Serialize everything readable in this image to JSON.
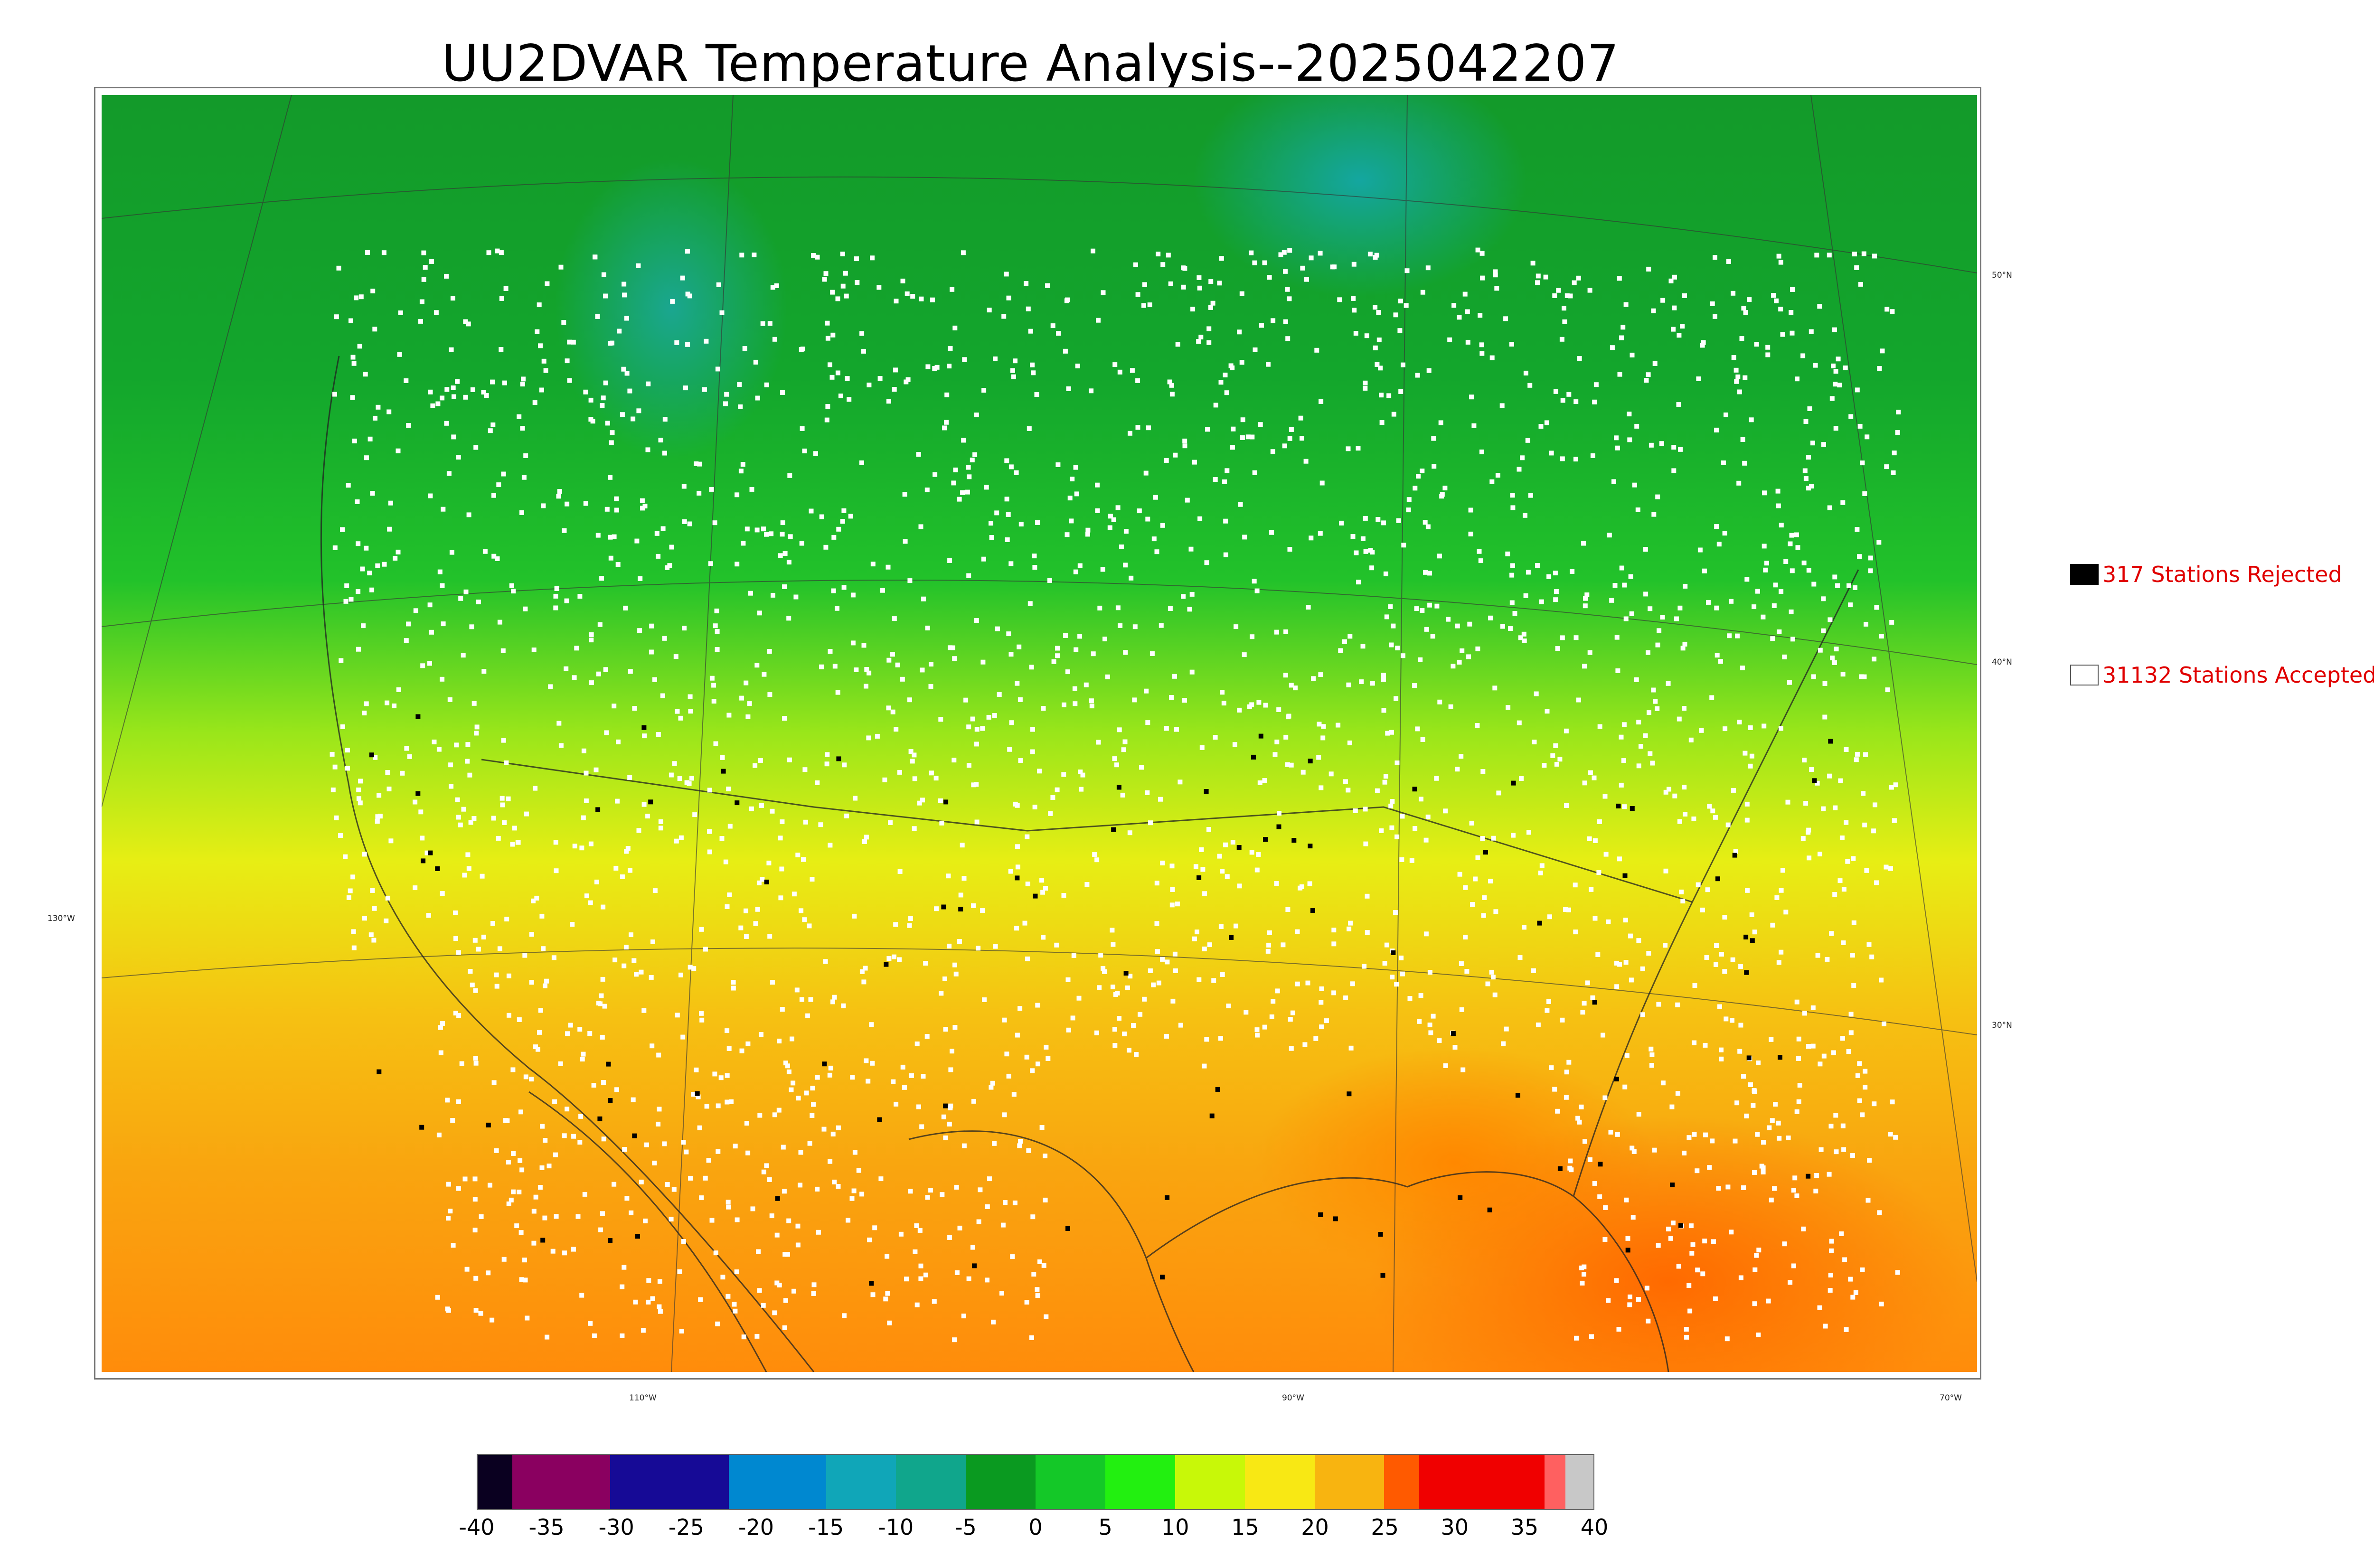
{
  "title": "UU2DVAR Temperature Analysis--2025042207",
  "map": {
    "latitude_labels": [
      "50°N",
      "40°N",
      "30°N",
      "130°W"
    ],
    "longitude_labels": [
      "110°W",
      "90°W",
      "70°W"
    ]
  },
  "legend": {
    "rejected": {
      "text": "317 Stations Rejected",
      "swatch_color": "#000000",
      "count": 317
    },
    "accepted": {
      "text": "31132 Stations Accepted",
      "swatch_color": "#ffffff",
      "count": 31132
    }
  },
  "colorbar": {
    "tick_labels": [
      "-40",
      "-35",
      "-30",
      "-25",
      "-20",
      "-15",
      "-10",
      "-5",
      "0",
      "5",
      "10",
      "15",
      "20",
      "25",
      "30",
      "35",
      "40"
    ],
    "range": [
      -40,
      40
    ],
    "colors": [
      {
        "from": -40,
        "to": -37.5,
        "color": "#0a0020"
      },
      {
        "from": -37.5,
        "to": -30.5,
        "color": "#8a0060"
      },
      {
        "from": -30.5,
        "to": -22,
        "color": "#160a96"
      },
      {
        "from": -22,
        "to": -15,
        "color": "#0088d0"
      },
      {
        "from": -15,
        "to": -10,
        "color": "#10a6b8"
      },
      {
        "from": -10,
        "to": -5,
        "color": "#10a68c"
      },
      {
        "from": -5,
        "to": 0,
        "color": "#0a9a20"
      },
      {
        "from": 0,
        "to": 5,
        "color": "#14c828"
      },
      {
        "from": 5,
        "to": 10,
        "color": "#22f010"
      },
      {
        "from": 10,
        "to": 15,
        "color": "#c8f808"
      },
      {
        "from": 15,
        "to": 20,
        "color": "#f8e814"
      },
      {
        "from": 20,
        "to": 25,
        "color": "#f8b410"
      },
      {
        "from": 25,
        "to": 27.5,
        "color": "#ff5a00"
      },
      {
        "from": 27.5,
        "to": 36.5,
        "color": "#f00000"
      },
      {
        "from": 36.5,
        "to": 38,
        "color": "#ff6060"
      },
      {
        "from": 38,
        "to": 40,
        "color": "#c8c8c8"
      }
    ]
  },
  "summary": {
    "rejected_stations": 317,
    "accepted_stations": 31132,
    "analysis_time": "2025042207"
  }
}
